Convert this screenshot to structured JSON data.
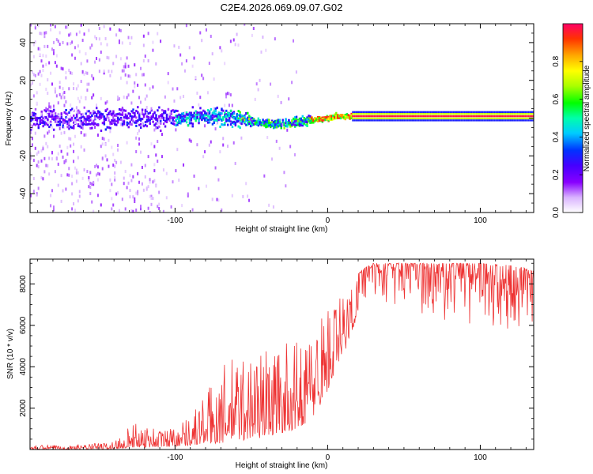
{
  "figure": {
    "title": "C2E4.2026.069.09.07.G02"
  },
  "chart_data": [
    {
      "type": "heatmap",
      "title": "C2E4.2026.069.09.07.G02",
      "xlabel": "Height of straight line (km)",
      "ylabel": "Frequency (Hz)",
      "xlim": [
        -195,
        135
      ],
      "ylim": [
        -50,
        50
      ],
      "xticks": [
        -100,
        0,
        100
      ],
      "xtick_labels": [
        "-100",
        "0",
        "100"
      ],
      "yticks": [
        -40,
        -20,
        0,
        20,
        40
      ],
      "ytick_labels": [
        "-40",
        "-20",
        "0",
        "20",
        "40"
      ],
      "colorbar": {
        "label": "Normalized spectral amplitude",
        "range": [
          0,
          1
        ],
        "ticks": [
          0.0,
          0.2,
          0.4,
          0.6,
          0.8
        ],
        "tick_labels": [
          "0.0",
          "0.2",
          "0.4",
          "0.6",
          "0.8"
        ],
        "colormap": "rainbow (violet to red)"
      },
      "description": "Scattered low-amplitude energy below -100 km, concentrated band near 0 Hz from -100 to 15 km with frequency dipping to about -3 Hz near -40 km, and a strong flat line at about 1 Hz above 15 km",
      "ridge": {
        "x": [
          -195,
          -150,
          -100,
          -80,
          -60,
          -50,
          -40,
          -30,
          -20,
          -10,
          0,
          5,
          10,
          15,
          135
        ],
        "frequency": [
          -1,
          0,
          0,
          1,
          0,
          -2,
          -3,
          -3,
          -2,
          -1,
          0,
          1,
          0.5,
          1,
          1
        ]
      }
    },
    {
      "type": "line",
      "xlabel": "Height of straight line (km)",
      "ylabel": "SNR (10 * v/v)",
      "xlim": [
        -195,
        135
      ],
      "ylim": [
        0,
        9200
      ],
      "xticks": [
        -100,
        0,
        100
      ],
      "xtick_labels": [
        "-100",
        "0",
        "100"
      ],
      "yticks": [
        2000,
        4000,
        6000,
        8000
      ],
      "ytick_labels": [
        "2000",
        "4000",
        "6000",
        "8000"
      ],
      "color": "#ee3333",
      "series": [
        {
          "name": "SNR upper envelope",
          "x": [
            -195,
            -160,
            -140,
            -130,
            -120,
            -110,
            -100,
            -90,
            -80,
            -70,
            -60,
            -50,
            -40,
            -30,
            -20,
            -10,
            0,
            10,
            20,
            25,
            30,
            40,
            60,
            80,
            100,
            120,
            135
          ],
          "values": [
            200,
            250,
            400,
            1200,
            1300,
            1000,
            1200,
            1700,
            2800,
            4000,
            4600,
            4800,
            5000,
            5100,
            5200,
            6000,
            7200,
            7600,
            8500,
            8800,
            9000,
            9000,
            9000,
            9000,
            9000,
            8900,
            8700
          ]
        },
        {
          "name": "SNR lower envelope",
          "x": [
            -195,
            -160,
            -140,
            -130,
            -120,
            -110,
            -100,
            -90,
            -80,
            -70,
            -60,
            -50,
            -40,
            -30,
            -20,
            -10,
            0,
            10,
            20,
            25,
            30,
            40,
            60,
            80,
            100,
            120,
            135
          ],
          "values": [
            0,
            0,
            0,
            100,
            100,
            100,
            150,
            200,
            250,
            300,
            400,
            500,
            600,
            800,
            1000,
            1500,
            2800,
            4500,
            6500,
            7000,
            7500,
            7000,
            6500,
            6200,
            6000,
            5800,
            5500
          ]
        }
      ]
    }
  ]
}
